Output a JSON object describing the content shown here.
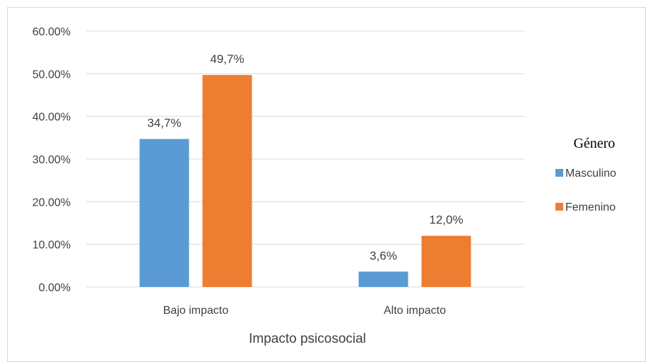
{
  "chart_data": {
    "type": "bar",
    "categories": [
      "Bajo impacto",
      "Alto impacto"
    ],
    "series": [
      {
        "name": "Masculino",
        "values": [
          34.7,
          3.6
        ],
        "labels": [
          "34,7%",
          "3,6%"
        ],
        "color": "#5b9bd5"
      },
      {
        "name": "Femenino",
        "values": [
          49.7,
          12.0
        ],
        "labels": [
          "49,7%",
          "12,0%"
        ],
        "color": "#ed7d31"
      }
    ],
    "xlabel": "Impacto psicosocial",
    "ylabel": "",
    "ylim": [
      0,
      60
    ],
    "yticks": [
      0,
      10,
      20,
      30,
      40,
      50,
      60
    ],
    "ytick_labels": [
      "0.00%",
      "10.00%",
      "20.00%",
      "30.00%",
      "40.00%",
      "50.00%",
      "60.00%"
    ],
    "legend_title": "Género",
    "legend_position": "right",
    "grid": true,
    "gridline_color": "#d9d9d9"
  }
}
